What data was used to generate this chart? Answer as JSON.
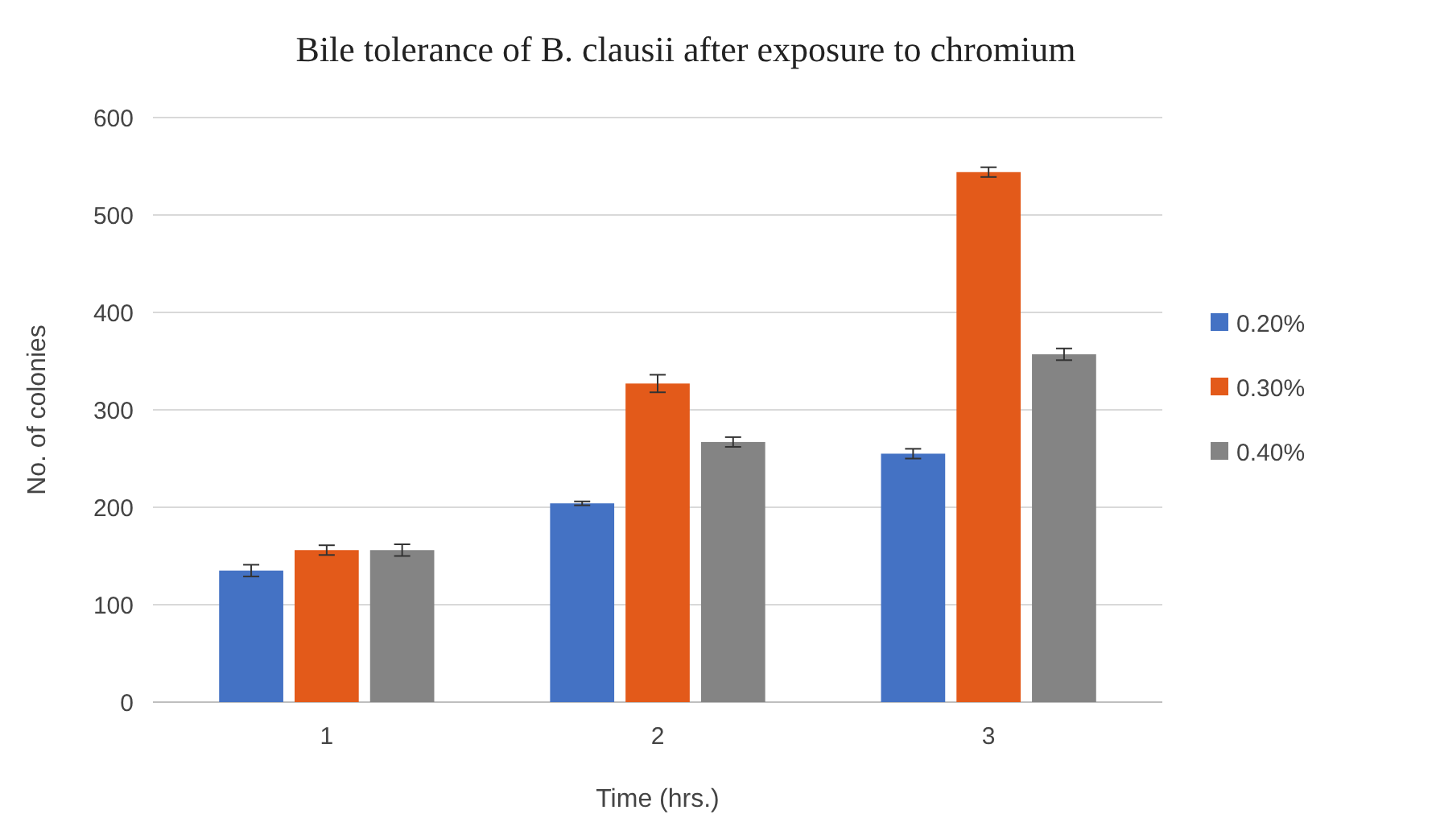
{
  "chart_data": {
    "type": "bar",
    "title": "Bile tolerance of B. clausii after exposure to chromium",
    "xlabel": "Time (hrs.)",
    "ylabel": "No. of colonies",
    "categories": [
      "1",
      "2",
      "3"
    ],
    "series": [
      {
        "name": "0.20%",
        "color": "#4472c4",
        "values": [
          135,
          204,
          255
        ],
        "errors": [
          6,
          2,
          5
        ]
      },
      {
        "name": "0.30%",
        "color": "#e35a1a",
        "values": [
          156,
          327,
          544
        ],
        "errors": [
          5,
          9,
          5
        ]
      },
      {
        "name": "0.40%",
        "color": "#848484",
        "values": [
          156,
          267,
          357
        ],
        "errors": [
          6,
          5,
          6
        ]
      }
    ],
    "ylim": [
      0,
      600
    ],
    "yticks": [
      0,
      100,
      200,
      300,
      400,
      500,
      600
    ],
    "grid": "y",
    "legend": "right"
  }
}
